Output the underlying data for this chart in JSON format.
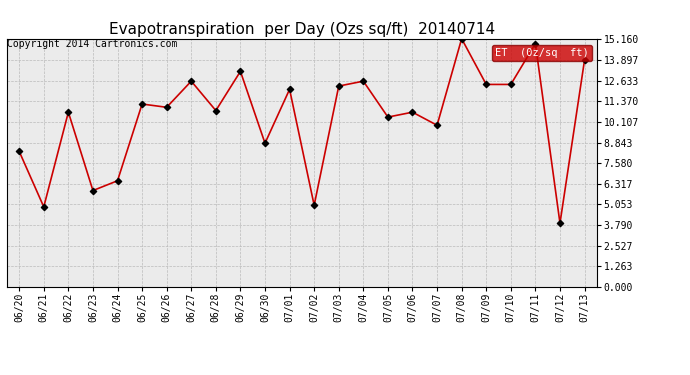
{
  "title": "Evapotranspiration  per Day (Ozs sq/ft)  20140714",
  "copyright": "Copyright 2014 Cartronics.com",
  "legend_label": "ET  (0z/sq  ft)",
  "legend_bg": "#cc0000",
  "legend_fg": "#ffffff",
  "x_labels": [
    "06/20",
    "06/21",
    "06/22",
    "06/23",
    "06/24",
    "06/25",
    "06/26",
    "06/27",
    "06/28",
    "06/29",
    "06/30",
    "07/01",
    "07/02",
    "07/03",
    "07/04",
    "07/05",
    "07/06",
    "07/07",
    "07/08",
    "07/09",
    "07/10",
    "07/11",
    "07/12",
    "07/13"
  ],
  "y_values": [
    8.3,
    4.9,
    10.7,
    5.9,
    6.5,
    11.2,
    11.0,
    12.6,
    10.8,
    13.2,
    8.8,
    12.1,
    5.0,
    12.3,
    12.6,
    10.4,
    10.7,
    9.9,
    15.2,
    12.4,
    12.4,
    14.9,
    3.9,
    13.9
  ],
  "line_color": "#cc0000",
  "marker_color": "#000000",
  "bg_color": "#ffffff",
  "plot_bg_color": "#ebebeb",
  "grid_color": "#bbbbbb",
  "y_ticks": [
    0.0,
    1.263,
    2.527,
    3.79,
    5.053,
    6.317,
    7.58,
    8.843,
    10.107,
    11.37,
    12.633,
    13.897,
    15.16
  ],
  "ylim": [
    0.0,
    15.16
  ],
  "title_fontsize": 11,
  "copyright_fontsize": 7,
  "tick_fontsize": 7
}
